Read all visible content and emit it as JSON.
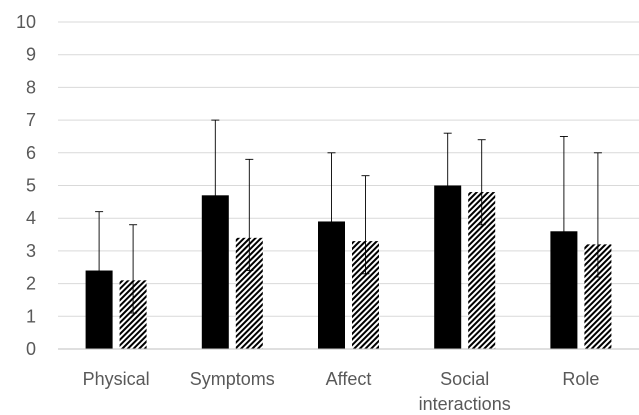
{
  "chart_data": {
    "type": "bar",
    "title": "",
    "xlabel": "",
    "ylabel": "",
    "ylim": [
      0,
      10
    ],
    "yticks": [
      "0",
      "1",
      "2",
      "3",
      "4",
      "5",
      "6",
      "7",
      "8",
      "9",
      "10"
    ],
    "grid": true,
    "legend": "none",
    "categories": [
      [
        "Physical"
      ],
      [
        "Symptoms"
      ],
      [
        "Affect"
      ],
      [
        "Social",
        "interactions"
      ],
      [
        "Role"
      ]
    ],
    "series": [
      {
        "fill": "solid",
        "color": "#000000",
        "values": [
          2.4,
          4.7,
          3.9,
          5.0,
          3.6
        ],
        "error_low": [
          1.4,
          3.7,
          2.9,
          4.0,
          2.6
        ],
        "error_high": [
          4.2,
          7.0,
          6.0,
          6.6,
          6.5
        ]
      },
      {
        "fill": "hatched",
        "color": "#000000",
        "values": [
          2.1,
          3.4,
          3.3,
          4.8,
          3.2
        ],
        "error_low": [
          1.1,
          2.4,
          2.3,
          3.8,
          2.2
        ],
        "error_high": [
          3.8,
          5.8,
          5.3,
          6.4,
          6.0
        ]
      }
    ]
  }
}
